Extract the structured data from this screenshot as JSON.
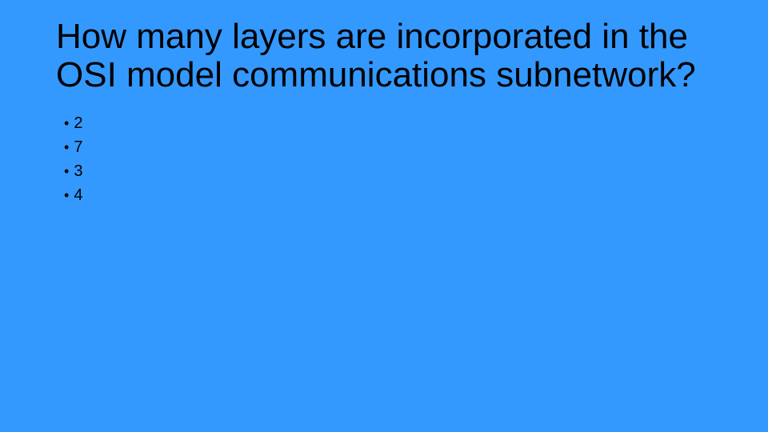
{
  "slide": {
    "background_color": "#3399ff",
    "text_color": "#000000",
    "title": {
      "line1": "How many layers are incorporated in the",
      "line2": "OSI model communications subnetwork?",
      "fontsize": 44,
      "fontweight": 300
    },
    "options": {
      "bullet_char": "•",
      "fontsize": 20,
      "items": [
        {
          "label": "2"
        },
        {
          "label": "7"
        },
        {
          "label": "3"
        },
        {
          "label": "4"
        }
      ]
    }
  }
}
